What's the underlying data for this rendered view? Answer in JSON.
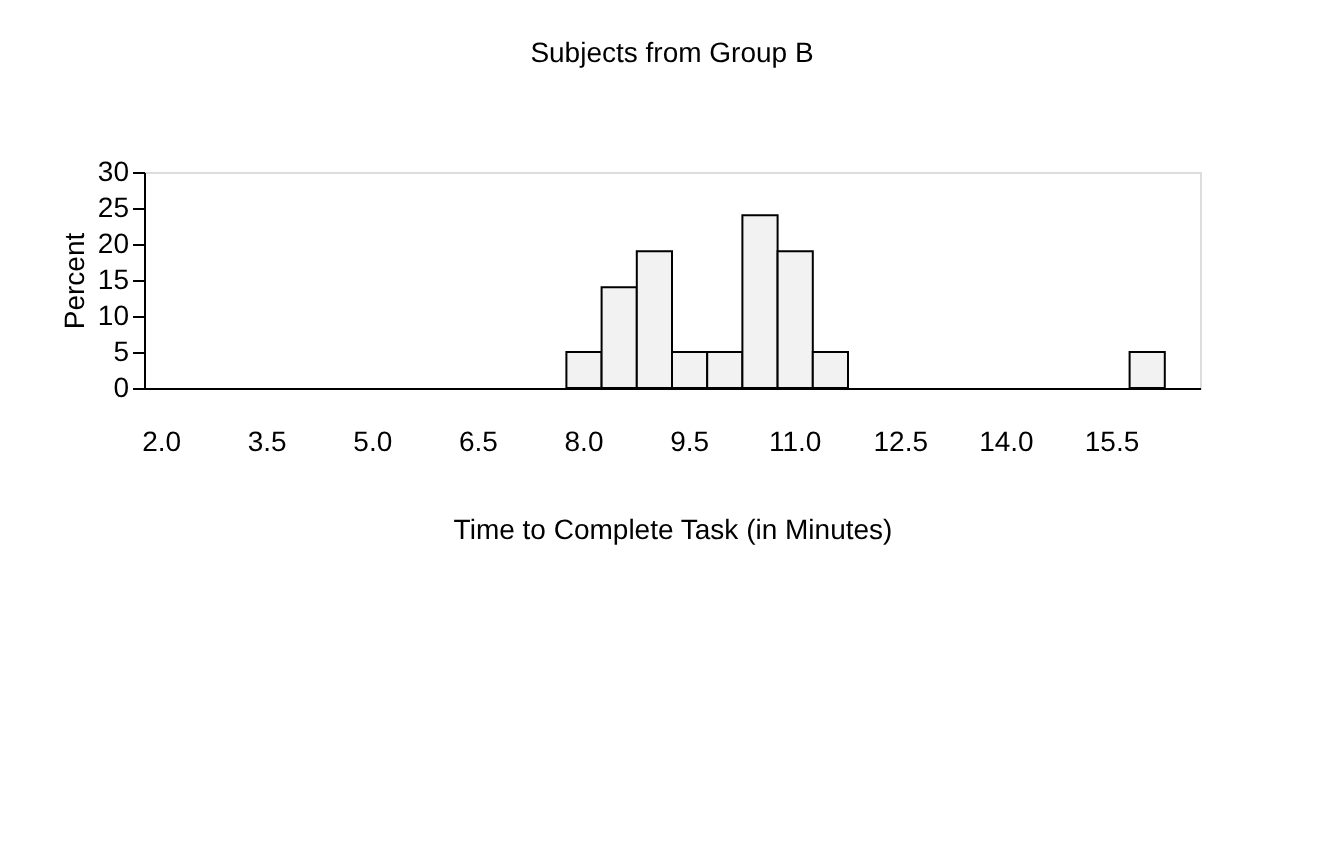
{
  "chart_data": {
    "type": "bar",
    "title": "Subjects from Group B",
    "xlabel": "Time to Complete Task (in Minutes)",
    "ylabel": "Percent",
    "categories": [
      "2.0",
      null,
      null,
      "3.5",
      null,
      null,
      "5.0",
      null,
      null,
      "6.5",
      null,
      null,
      "8.0",
      null,
      null,
      "9.5",
      null,
      null,
      "11.0",
      null,
      null,
      "12.5",
      null,
      null,
      "14.0",
      null,
      null,
      "15.5",
      null,
      null
    ],
    "values": [
      0,
      0,
      0,
      0,
      0,
      0,
      0,
      0,
      0,
      0,
      0,
      0,
      5,
      14,
      19,
      5,
      5,
      24,
      19,
      5,
      0,
      0,
      0,
      0,
      0,
      0,
      0,
      0,
      5,
      0
    ],
    "color": "#f2f2f2",
    "ylim": [
      0,
      30
    ],
    "yticks": [
      0,
      5,
      10,
      15,
      20,
      25,
      30
    ],
    "grid": false
  }
}
